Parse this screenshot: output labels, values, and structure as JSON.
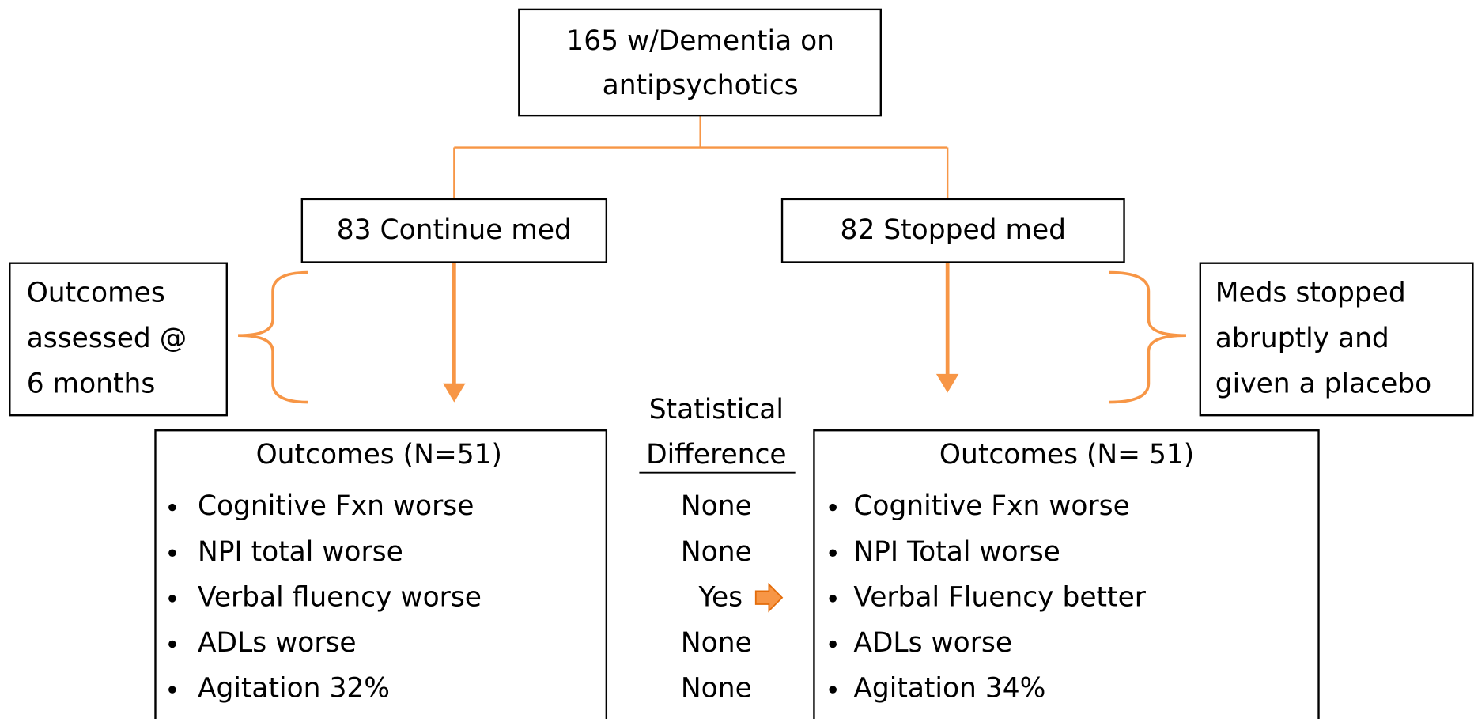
{
  "top": {
    "lines": [
      "165 w/Dementia on",
      "antipsychotics"
    ]
  },
  "branches": [
    {
      "label": "83 Continue med",
      "note": {
        "lines": [
          "Outcomes",
          "assessed @",
          "6 months"
        ]
      },
      "outcomes": {
        "title": "Outcomes (N=51)",
        "items": [
          "Cognitive Fxn worse",
          "NPI total worse",
          "Verbal fluency worse",
          "ADLs worse",
          "Agitation 32%"
        ]
      }
    },
    {
      "label": "82 Stopped med",
      "note": {
        "lines": [
          "Meds stopped",
          "abruptly and",
          "given a placebo"
        ]
      },
      "outcomes": {
        "title": "Outcomes (N= 51)",
        "items": [
          "Cognitive Fxn worse",
          "NPI Total worse",
          "Verbal Fluency better",
          "ADLs worse",
          "Agitation 34%"
        ]
      }
    }
  ],
  "comparison": {
    "header": [
      "Statistical",
      "Difference"
    ],
    "values": [
      "None",
      "None",
      "Yes",
      "None",
      "None"
    ]
  }
}
